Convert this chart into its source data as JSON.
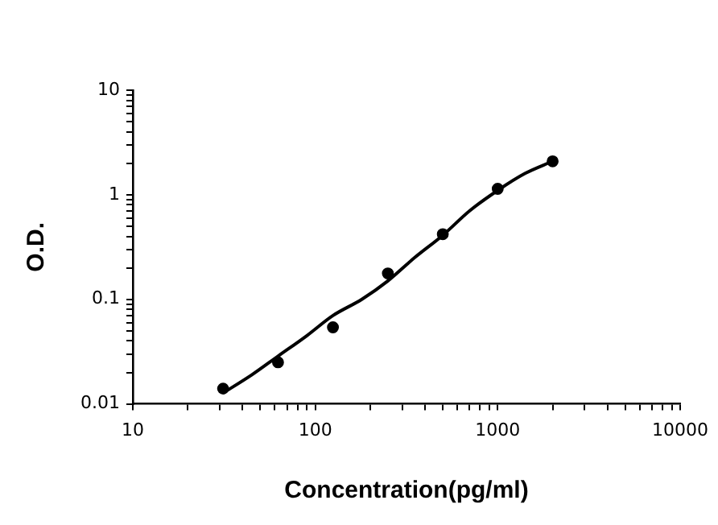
{
  "chart_data": {
    "type": "scatter",
    "xlabel": "Concentration(pg/ml)",
    "ylabel": "O.D.",
    "log": "xy",
    "grid": false,
    "legend": false,
    "marker": "circle",
    "xlim": [
      10,
      10000
    ],
    "ylim": [
      0.01,
      10
    ],
    "xticks": [
      10,
      {
        "value": 20,
        "label": null
      },
      {
        "value": 30,
        "label": null
      },
      {
        "value": 40,
        "label": null
      },
      {
        "value": 50,
        "label": null
      },
      {
        "value": 60,
        "label": null
      },
      {
        "value": 70,
        "label": null
      },
      {
        "value": 80,
        "label": null
      },
      {
        "value": 90,
        "label": null
      },
      100,
      {
        "value": 200,
        "label": null
      },
      {
        "value": 300,
        "label": null
      },
      {
        "value": 400,
        "label": null
      },
      {
        "value": 500,
        "label": null
      },
      {
        "value": 600,
        "label": null
      },
      {
        "value": 700,
        "label": null
      },
      {
        "value": 800,
        "label": null
      },
      {
        "value": 900,
        "label": null
      },
      1000,
      {
        "value": 2000,
        "label": null
      },
      {
        "value": 3000,
        "label": null
      },
      {
        "value": 4000,
        "label": null
      },
      {
        "value": 5000,
        "label": null
      },
      {
        "value": 6000,
        "label": null
      },
      {
        "value": 7000,
        "label": null
      },
      {
        "value": 8000,
        "label": null
      },
      {
        "value": 9000,
        "label": null
      },
      10000
    ],
    "yticks": [
      0.01,
      {
        "value": 0.02,
        "label": null
      },
      {
        "value": 0.03,
        "label": null
      },
      {
        "value": 0.04,
        "label": null
      },
      {
        "value": 0.05,
        "label": null
      },
      {
        "value": 0.06,
        "label": null
      },
      {
        "value": 0.07,
        "label": null
      },
      {
        "value": 0.08,
        "label": null
      },
      {
        "value": 0.09,
        "label": null
      },
      0.1,
      {
        "value": 0.2,
        "label": null
      },
      {
        "value": 0.3,
        "label": null
      },
      {
        "value": 0.4,
        "label": null
      },
      {
        "value": 0.5,
        "label": null
      },
      {
        "value": 0.6,
        "label": null
      },
      {
        "value": 0.7,
        "label": null
      },
      {
        "value": 0.8,
        "label": null
      },
      {
        "value": 0.9,
        "label": null
      },
      1,
      {
        "value": 2,
        "label": null
      },
      {
        "value": 3,
        "label": null
      },
      {
        "value": 4,
        "label": null
      },
      {
        "value": 5,
        "label": null
      },
      {
        "value": 6,
        "label": null
      },
      {
        "value": 7,
        "label": null
      },
      {
        "value": 8,
        "label": null
      },
      {
        "value": 9,
        "label": null
      },
      10
    ],
    "series": [
      {
        "type": "line",
        "marker": "none",
        "color": "#000000",
        "x": [
          31.25,
          45,
          62.5,
          90,
          125,
          180,
          250,
          350,
          500,
          700,
          1000,
          1414,
          2000
        ],
        "values": [
          0.0127,
          0.019,
          0.0286,
          0.045,
          0.07,
          0.1,
          0.15,
          0.25,
          0.41,
          0.7,
          1.1,
          1.6,
          2.09
        ]
      },
      {
        "color": "#000000",
        "x": [
          31.25,
          62.5,
          125,
          250,
          500,
          1000,
          2000
        ],
        "values": [
          0.014,
          0.025,
          0.054,
          0.177,
          0.42,
          1.14,
          2.09
        ]
      }
    ]
  }
}
